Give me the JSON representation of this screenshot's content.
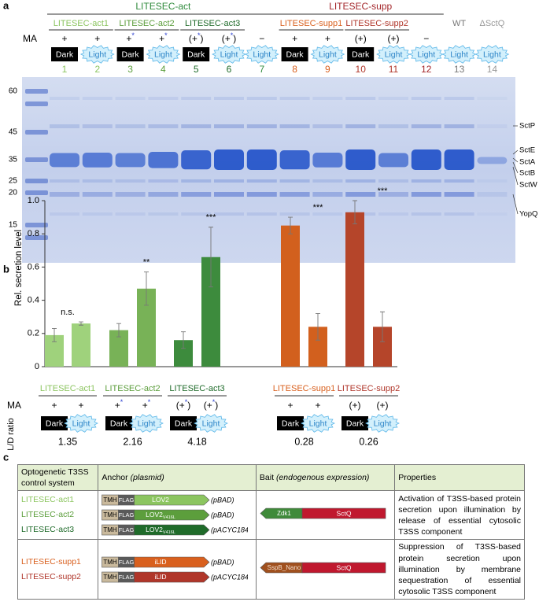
{
  "panel_a": {
    "label": "a",
    "groups": [
      {
        "name": "LITESEC-act",
        "color": "#2f8a3c"
      },
      {
        "name": "LITESEC-supp",
        "color": "#a3262a"
      }
    ],
    "subgroups": [
      {
        "name": "LITESEC-act1",
        "color": "#8cc560"
      },
      {
        "name": "LITESEC-act2",
        "color": "#5c9e3c"
      },
      {
        "name": "LITESEC-act3",
        "color": "#1f6b2a"
      },
      {
        "name": "LITESEC-supp1",
        "color": "#d9601e"
      },
      {
        "name": "LITESEC-supp2",
        "color": "#b0362a"
      },
      {
        "name": "WT",
        "color": "#777777"
      },
      {
        "name": "ΔSctQ",
        "color": "#999999"
      }
    ],
    "ma_label": "MA",
    "lanes": [
      {
        "number": 1,
        "ma": [
          "+"
        ],
        "illumination": "Dark",
        "lit": false
      },
      {
        "number": 2,
        "ma": [
          "+"
        ],
        "illumination": "Light",
        "lit": true
      },
      {
        "number": 3,
        "ma": [
          "+",
          "*"
        ],
        "illumination": "Dark",
        "lit": false
      },
      {
        "number": 4,
        "ma": [
          "+",
          "*"
        ],
        "illumination": "Light",
        "lit": true
      },
      {
        "number": 5,
        "ma": [
          "(+",
          "*",
          ")"
        ],
        "illumination": "Dark",
        "lit": false
      },
      {
        "number": 6,
        "ma": [
          "(+",
          "*",
          ")"
        ],
        "illumination": "Light",
        "lit": true
      },
      {
        "number": 7,
        "ma": [
          "−"
        ],
        "illumination": "Light",
        "lit": true
      },
      {
        "number": 8,
        "ma": [
          "+"
        ],
        "illumination": "Dark",
        "lit": false
      },
      {
        "number": 9,
        "ma": [
          "+"
        ],
        "illumination": "Light",
        "lit": true
      },
      {
        "number": 10,
        "ma": [
          "(+)"
        ],
        "illumination": "Dark",
        "lit": false
      },
      {
        "number": 11,
        "ma": [
          "(+)"
        ],
        "illumination": "Light",
        "lit": true
      },
      {
        "number": 12,
        "ma": [
          "−"
        ],
        "illumination": "Light",
        "lit": true
      },
      {
        "number": 13,
        "illumination": "Light",
        "lit": true
      },
      {
        "number": 14,
        "illumination": "Light",
        "lit": true
      }
    ],
    "markers": [
      60,
      45,
      35,
      25,
      20,
      15
    ],
    "proteins": [
      "SctP",
      "SctE",
      "SctA",
      "SctB",
      "SctW",
      "YopQ"
    ]
  },
  "panel_b": {
    "label": "b",
    "chart_data": {
      "type": "bar",
      "ylabel": "Rel. secretion level",
      "ylim": [
        0,
        1
      ],
      "yticks": [
        0,
        0.2,
        0.4,
        0.6,
        0.8,
        {
          "value": 1,
          "label": "1.0"
        }
      ],
      "categories": [
        "LITESEC-act1",
        "LITESEC-act2",
        "LITESEC-act3",
        "LITESEC-supp1",
        "LITESEC-supp2"
      ],
      "colors": [
        "#9fd27c",
        "#78b257",
        "#3d8b3d",
        "#d2601e",
        "#b5452a"
      ],
      "series": [
        {
          "name": "Dark",
          "lit": false,
          "values": [
            0.19,
            0.22,
            0.16,
            0.85,
            0.93
          ],
          "errors": [
            0.04,
            0.04,
            0.05,
            0.05,
            0.07
          ]
        },
        {
          "name": "Light",
          "lit": true,
          "values": [
            0.26,
            0.47,
            0.66,
            0.24,
            0.24
          ],
          "errors": [
            0.01,
            0.1,
            0.18,
            0.08,
            0.09
          ]
        }
      ],
      "significance": [
        "n.s.",
        "**",
        "***",
        "***",
        "***"
      ],
      "ma_label": "MA",
      "ma": [
        [
          [
            "+"
          ],
          [
            "+"
          ]
        ],
        [
          [
            "+",
            "*"
          ],
          [
            "+",
            "*"
          ]
        ],
        [
          [
            "(+",
            "*",
            ")"
          ],
          [
            "(+",
            "*",
            ")"
          ]
        ],
        [
          [
            "+"
          ],
          [
            "+"
          ]
        ],
        [
          [
            "(+)"
          ],
          [
            "(+)"
          ]
        ]
      ],
      "ratio_label": "L/D ratio",
      "ratio": [
        1.35,
        2.16,
        4.18,
        0.28,
        0.26
      ]
    }
  },
  "panel_c": {
    "label": "c",
    "header": [
      {
        "text": "Optogenetic T3SS control system"
      },
      {
        "text": "Anchor",
        "em": "(plasmid)"
      },
      {
        "text": "Bait",
        "em": "(endogenous expression)"
      },
      {
        "text": "Properties"
      }
    ],
    "rows": [
      {
        "systems": [
          {
            "name": "LITESEC-act1",
            "color": "#8cc560",
            "construct": [
              "TMH",
              "FLAG",
              "LOV2"
            ],
            "plasmid": "(pBAD)"
          },
          {
            "name": "LITESEC-act2",
            "color": "#5c9e3c",
            "construct": [
              "TMH",
              "FLAG",
              "LOV2"
            ],
            "sub": "V416L",
            "plasmid": "(pBAD)"
          },
          {
            "name": "LITESEC-act3",
            "color": "#1f6b2a",
            "construct": [
              "TMH",
              "FLAG",
              "LOV2"
            ],
            "sub": "V416L",
            "plasmid": "(pACYC184)"
          }
        ],
        "bait": [
          "Zdk1",
          "SctQ"
        ],
        "bait_color": "#3f8a3a",
        "properties": "Activation of T3SS-based protein secretion upon illumination by release of essential cytosolic T3SS component"
      },
      {
        "systems": [
          {
            "name": "LITESEC-supp1",
            "color": "#d9601e",
            "construct": [
              "TMH",
              "FLAG",
              "iLID"
            ],
            "plasmid": "(pBAD)"
          },
          {
            "name": "LITESEC-supp2",
            "color": "#b0362a",
            "construct": [
              "TMH",
              "FLAG",
              "iLID"
            ],
            "plasmid": "(pACYC184)"
          }
        ],
        "bait": [
          "SspB_Nano",
          "SctQ"
        ],
        "bait_color": "#a0501e",
        "properties": "Suppression of T3SS-based protein secretion upon illumination by membrane sequestration of essential cytosolic T3SS component"
      }
    ]
  }
}
